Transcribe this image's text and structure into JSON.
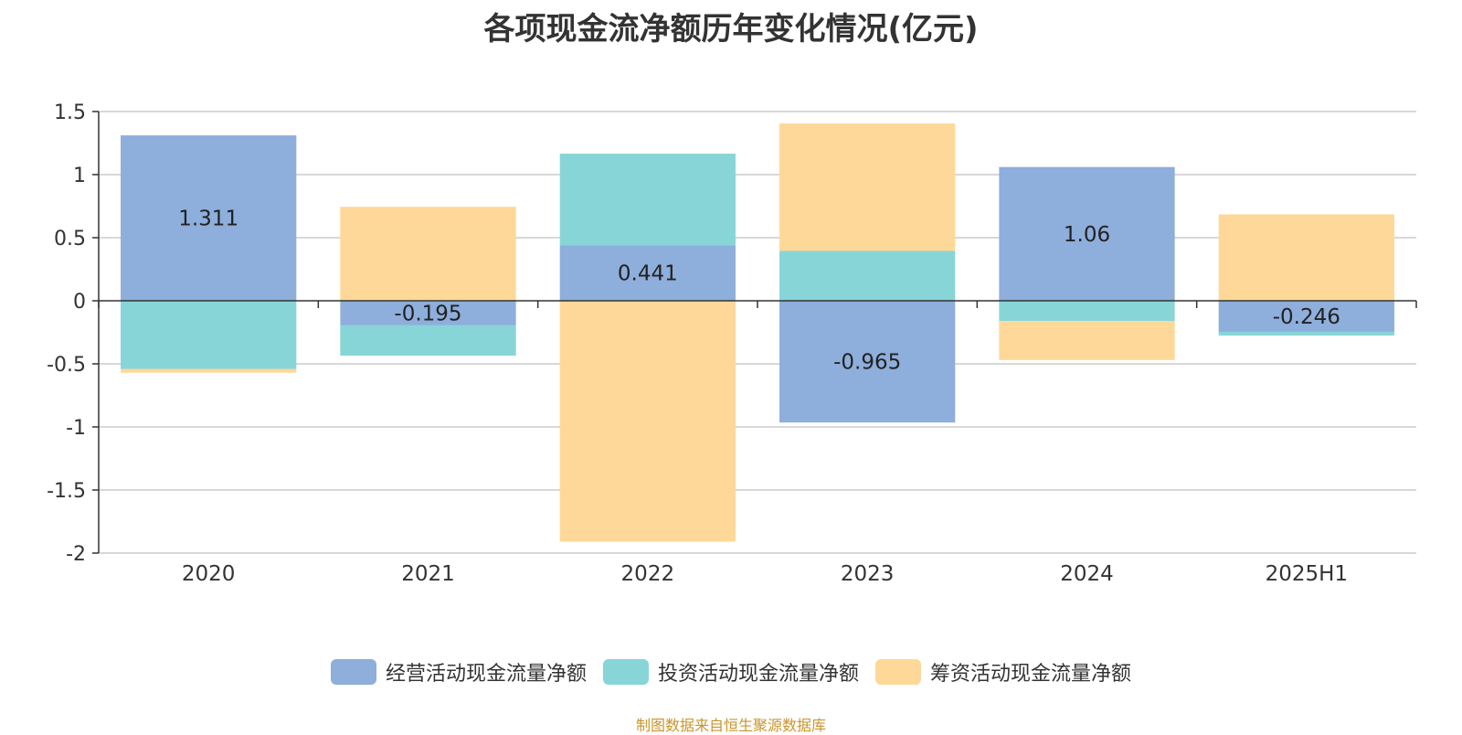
{
  "chart_data": {
    "type": "bar",
    "stacked": true,
    "title": "各项现金流净额历年变化情况(亿元)",
    "categories": [
      "2020",
      "2021",
      "2022",
      "2023",
      "2024",
      "2025H1"
    ],
    "series": [
      {
        "name": "经营活动现金流量净额",
        "color": "#8eaedb",
        "values": [
          1.311,
          -0.195,
          0.441,
          -0.965,
          1.06,
          -0.246
        ],
        "show_labels": true
      },
      {
        "name": "投资活动现金流量净额",
        "color": "#88d5d8",
        "values": [
          -0.54,
          -0.24,
          0.725,
          0.395,
          -0.16,
          -0.03
        ],
        "show_labels": false
      },
      {
        "name": "筹资活动现金流量净额",
        "color": "#fed898",
        "values": [
          -0.03,
          0.745,
          -1.91,
          1.01,
          -0.31,
          0.685
        ],
        "show_labels": false
      }
    ],
    "ylim": [
      -2,
      1.5
    ],
    "yticks": [
      1.5,
      1,
      0.5,
      0,
      -0.5,
      -1,
      -1.5,
      -2
    ],
    "grid": true,
    "legend": "bottom-center",
    "xlabel": "",
    "ylabel": ""
  },
  "footer": {
    "source": "制图数据来自恒生聚源数据库"
  }
}
